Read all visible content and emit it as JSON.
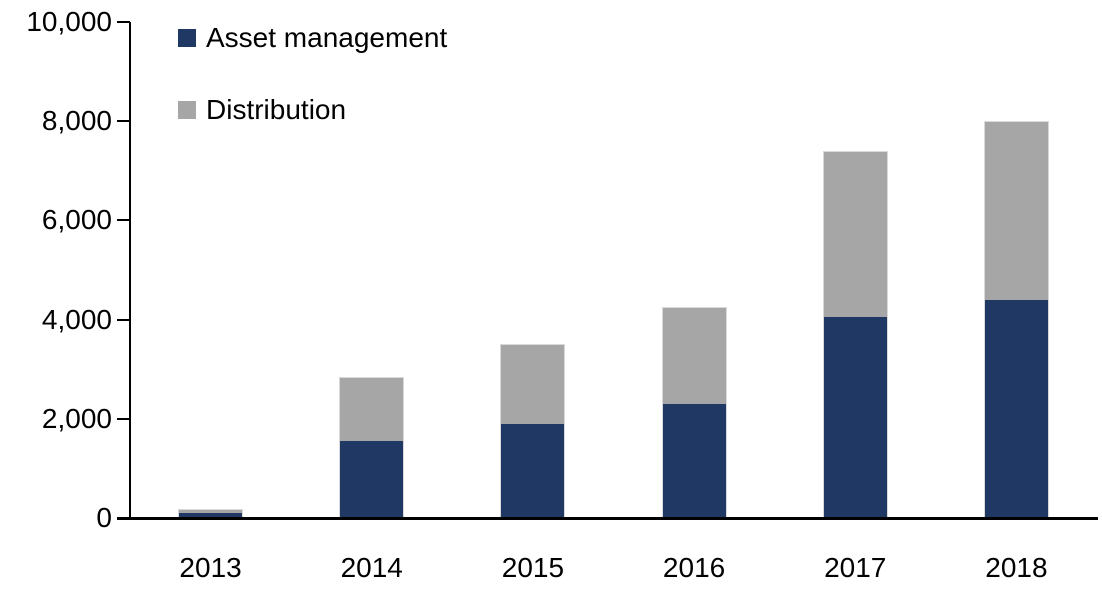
{
  "chart_data": {
    "type": "bar",
    "stacked": true,
    "title": "",
    "xlabel": "",
    "ylabel": "",
    "categories": [
      "2013",
      "2014",
      "2015",
      "2016",
      "2017",
      "2018"
    ],
    "series": [
      {
        "name": "Asset management",
        "color": "#1F3864",
        "values": [
          100,
          1550,
          1900,
          2300,
          4050,
          4400
        ]
      },
      {
        "name": "Distribution",
        "color": "#A6A6A6",
        "values": [
          80,
          1300,
          1600,
          1950,
          3350,
          3600
        ]
      }
    ],
    "stack_totals": [
      180,
      2850,
      3500,
      4250,
      7400,
      8000
    ],
    "ylim": [
      0,
      10000
    ],
    "y_ticks": [
      {
        "value": 0,
        "label": "0"
      },
      {
        "value": 2000,
        "label": "2,000"
      },
      {
        "value": 4000,
        "label": "4,000"
      },
      {
        "value": 6000,
        "label": "6,000"
      },
      {
        "value": 8000,
        "label": "8,000"
      },
      {
        "value": 10000,
        "label": "10,000"
      }
    ],
    "grid": false,
    "legend_position": "top-left-inside",
    "legend": [
      {
        "label": "Asset management",
        "color": "#1F3864"
      },
      {
        "label": "Distribution",
        "color": "#A6A6A6"
      }
    ],
    "axis_color": "#000000",
    "bar_border_color": "#D9D9D9"
  }
}
